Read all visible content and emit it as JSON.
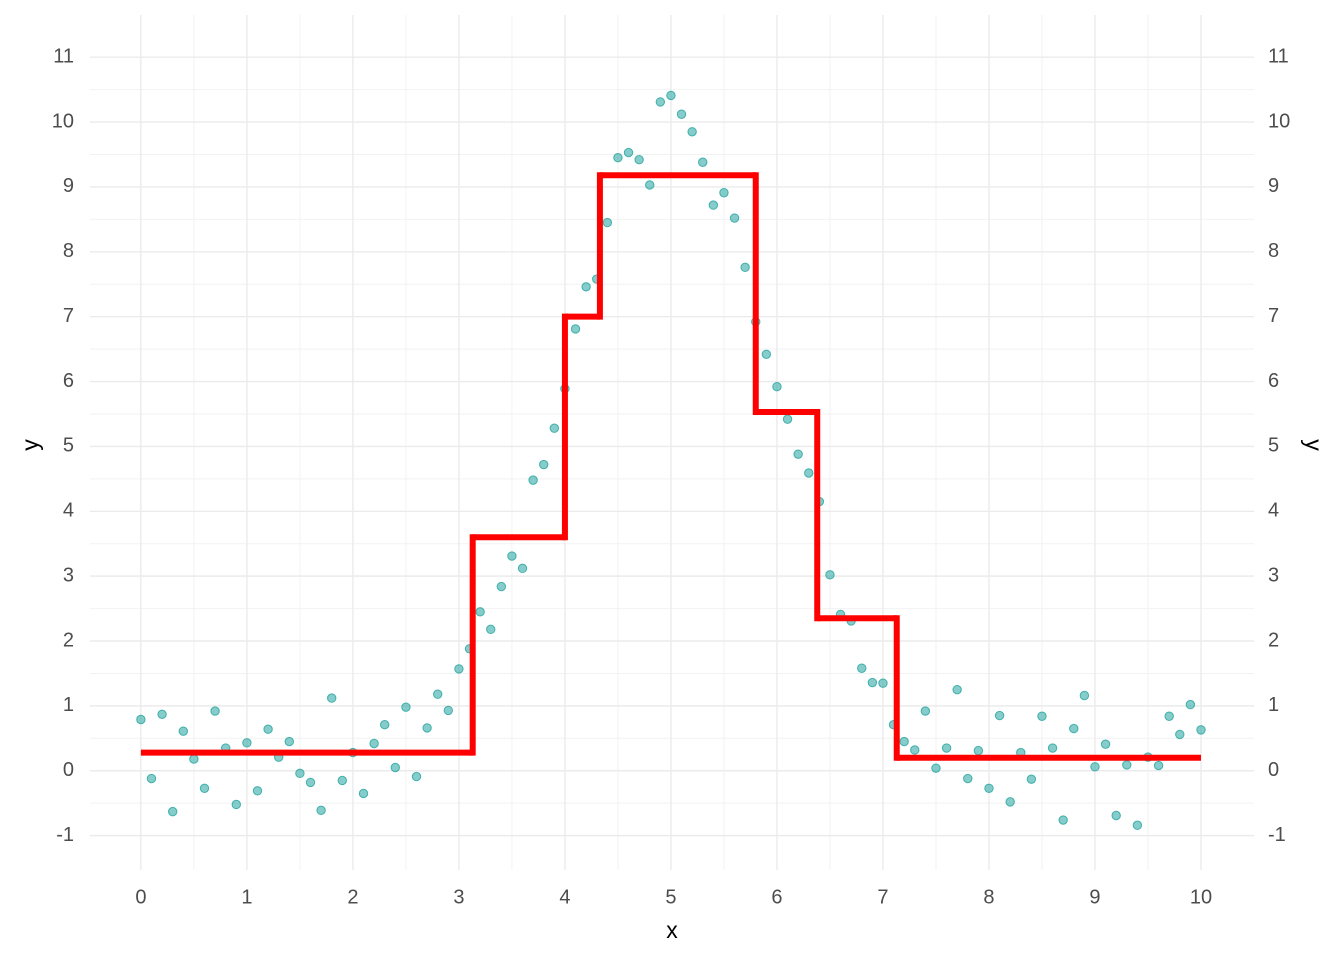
{
  "chart_data": {
    "type": "scatter",
    "xlabel": "x",
    "ylabel": "y",
    "y2label": "y",
    "xlim": [
      -0.48,
      10.5
    ],
    "ylim": [
      -1.53,
      11.65
    ],
    "y2lim": [
      -1.53,
      11.65
    ],
    "xticks": [
      0,
      1,
      2,
      3,
      4,
      5,
      6,
      7,
      8,
      9,
      10
    ],
    "yticks": [
      -1,
      0,
      1,
      2,
      3,
      4,
      5,
      6,
      7,
      8,
      9,
      10,
      11
    ],
    "y2ticks": [
      -1,
      0,
      1,
      2,
      3,
      4,
      5,
      6,
      7,
      8,
      9,
      10,
      11
    ],
    "grid": true,
    "minor_grid": true,
    "series": [
      {
        "type": "scatter",
        "color": "#20a39e",
        "x": [
          0,
          0.1,
          0.2,
          0.3,
          0.4,
          0.5,
          0.6,
          0.7,
          0.8,
          0.9,
          1,
          1.1,
          1.2,
          1.3,
          1.4,
          1.5,
          1.6,
          1.7,
          1.8,
          1.9,
          2,
          2.1,
          2.2,
          2.3,
          2.4,
          2.5,
          2.6,
          2.7,
          2.8,
          2.9,
          3,
          3.1,
          3.2,
          3.3,
          3.4,
          3.5,
          3.6,
          3.7,
          3.8,
          3.9,
          4,
          4.1,
          4.2,
          4.3,
          4.4,
          4.5,
          4.6,
          4.7,
          4.8,
          4.9,
          5,
          5.1,
          5.2,
          5.3,
          5.4,
          5.5,
          5.6,
          5.7,
          5.8,
          5.9,
          6,
          6.1,
          6.2,
          6.3,
          6.4,
          6.5,
          6.6,
          6.7,
          6.8,
          6.9,
          7,
          7.1,
          7.2,
          7.3,
          7.4,
          7.5,
          7.6,
          7.7,
          7.8,
          7.9,
          8,
          8.1,
          8.2,
          8.3,
          8.4,
          8.5,
          8.6,
          8.7,
          8.8,
          8.9,
          9,
          9.1,
          9.2,
          9.3,
          9.4,
          9.5,
          9.6,
          9.7,
          9.8,
          9.9,
          10
        ],
        "values": [
          0.79,
          -0.12,
          0.87,
          -0.63,
          0.61,
          0.18,
          -0.27,
          0.92,
          0.35,
          -0.52,
          0.43,
          -0.31,
          0.64,
          0.21,
          0.45,
          -0.04,
          -0.18,
          -0.61,
          1.12,
          -0.15,
          0.28,
          -0.35,
          0.42,
          0.71,
          0.05,
          0.98,
          -0.09,
          0.66,
          1.18,
          0.93,
          1.57,
          1.88,
          2.45,
          2.18,
          2.84,
          3.31,
          3.12,
          4.48,
          4.72,
          5.28,
          5.89,
          6.81,
          7.46,
          7.58,
          8.45,
          9.45,
          9.53,
          9.42,
          9.03,
          10.31,
          10.41,
          10.12,
          9.85,
          9.38,
          8.72,
          8.91,
          8.52,
          7.76,
          6.92,
          6.42,
          5.92,
          5.42,
          4.88,
          4.59,
          4.15,
          3.02,
          2.41,
          2.31,
          1.58,
          1.36,
          1.35,
          0.71,
          0.45,
          0.32,
          0.92,
          0.04,
          0.35,
          1.25,
          -0.12,
          0.31,
          -0.27,
          0.85,
          -0.48,
          0.28,
          -0.13,
          0.84,
          0.35,
          -0.76,
          0.65,
          1.16,
          0.06,
          0.41,
          -0.69,
          0.09,
          -0.84,
          0.21,
          0.08,
          0.84,
          0.56,
          1.02,
          0.63
        ]
      },
      {
        "type": "step",
        "color": "#ff0000",
        "x": [
          0,
          3.13,
          4.0,
          4.33,
          5.8,
          6.38,
          7.13
        ],
        "x_end": 10,
        "values": [
          0.28,
          3.6,
          7.0,
          9.18,
          5.53,
          2.35,
          0.2
        ]
      }
    ]
  }
}
